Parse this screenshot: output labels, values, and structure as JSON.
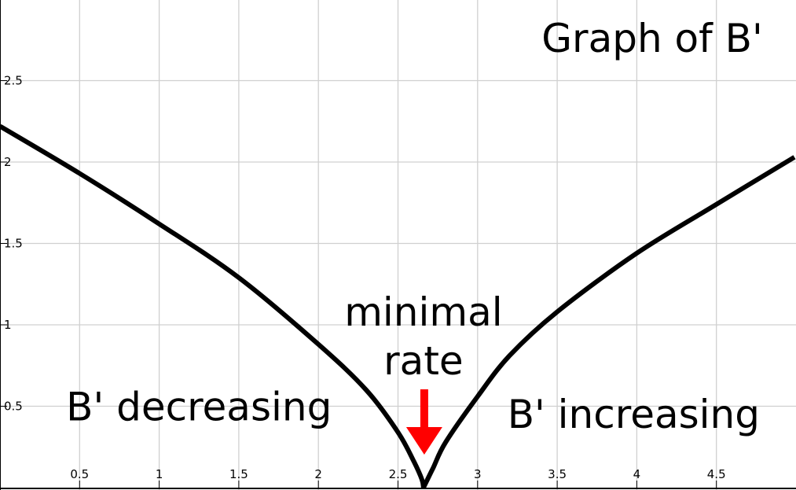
{
  "chart_data": {
    "type": "line",
    "title": "Graph of B'",
    "xlabel": "",
    "ylabel": "",
    "xlim": [
      0,
      5
    ],
    "ylim": [
      0,
      2.9
    ],
    "grid": true,
    "x_ticks": [
      0.5,
      1,
      1.5,
      2,
      2.5,
      3,
      3.5,
      4,
      4.5
    ],
    "x_tick_labels": [
      "0.5",
      "1",
      "1.5",
      "2",
      "2.5",
      "3",
      "3.5",
      "4",
      "4.5"
    ],
    "y_ticks": [
      0.5,
      1,
      1.5,
      2,
      2.5
    ],
    "y_tick_labels": [
      "0.5",
      "1",
      "1.5",
      "2",
      "2.5"
    ],
    "series": [
      {
        "color": "#000000",
        "points": [
          [
            0,
            2.22
          ],
          [
            0.5,
            1.93
          ],
          [
            1,
            1.62
          ],
          [
            1.5,
            1.29
          ],
          [
            2,
            0.88
          ],
          [
            2.3,
            0.6
          ],
          [
            2.5,
            0.34
          ],
          [
            2.6,
            0.16
          ],
          [
            2.65,
            0.05
          ],
          [
            2.66,
            0.0
          ],
          [
            2.72,
            0.12
          ],
          [
            2.8,
            0.28
          ],
          [
            3,
            0.56
          ],
          [
            3.2,
            0.81
          ],
          [
            3.5,
            1.08
          ],
          [
            4,
            1.44
          ],
          [
            4.5,
            1.74
          ],
          [
            4.99,
            2.03
          ]
        ]
      }
    ],
    "annotations": [
      {
        "text": "B' decreasing",
        "x": 1.25,
        "y": 0.5
      },
      {
        "text": "B' increasing",
        "x": 3.98,
        "y": 0.45
      },
      {
        "lines": [
          "minimal",
          "rate"
        ],
        "x": 2.66,
        "y": 0.9
      }
    ],
    "minimum_marker": {
      "x": 2.66,
      "y": 0,
      "color": "#ff0000"
    }
  }
}
